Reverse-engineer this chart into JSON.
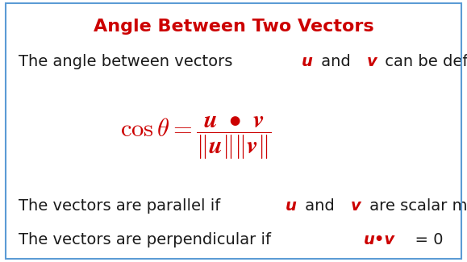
{
  "title": "Angle Between Two Vectors",
  "title_color": "#cc0000",
  "title_fontsize": 16,
  "bg_color": "#ffffff",
  "border_color": "#5b9bd5",
  "line1_parts": [
    {
      "text": "The angle between vectors ",
      "color": "#1a1a1a",
      "bold": false,
      "italic": false
    },
    {
      "text": "u",
      "color": "#cc0000",
      "bold": true,
      "italic": true
    },
    {
      "text": " and ",
      "color": "#1a1a1a",
      "bold": false,
      "italic": false
    },
    {
      "text": "v",
      "color": "#cc0000",
      "bold": true,
      "italic": true
    },
    {
      "text": " can be defined by",
      "color": "#1a1a1a",
      "bold": false,
      "italic": false
    }
  ],
  "formula_fontsize": 22,
  "formula_color": "#cc0000",
  "line3_parts": [
    {
      "text": "The vectors are parallel if ",
      "color": "#1a1a1a",
      "bold": false,
      "italic": false
    },
    {
      "text": "u",
      "color": "#cc0000",
      "bold": true,
      "italic": true
    },
    {
      "text": " and ",
      "color": "#1a1a1a",
      "bold": false,
      "italic": false
    },
    {
      "text": "v",
      "color": "#cc0000",
      "bold": true,
      "italic": true
    },
    {
      "text": " are scalar multiples.",
      "color": "#1a1a1a",
      "bold": false,
      "italic": false
    }
  ],
  "line4_parts": [
    {
      "text": "The vectors are perpendicular if   ",
      "color": "#1a1a1a",
      "bold": false,
      "italic": false
    },
    {
      "text": "u•v",
      "color": "#cc0000",
      "bold": true,
      "italic": true
    },
    {
      "text": "  = 0",
      "color": "#1a1a1a",
      "bold": false,
      "italic": false
    }
  ],
  "body_fontsize": 14,
  "fig_width": 5.79,
  "fig_height": 3.25,
  "dpi": 100
}
